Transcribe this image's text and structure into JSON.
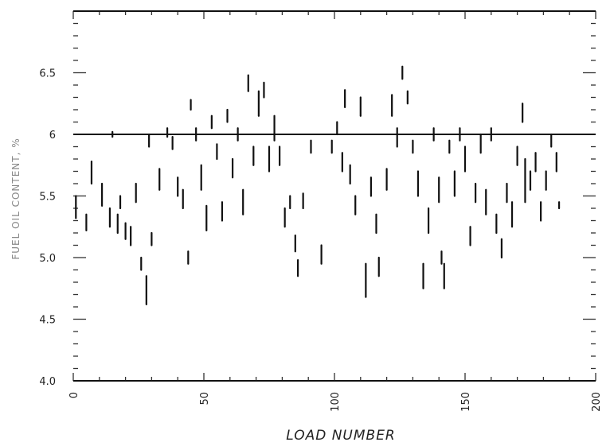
{
  "chart_data": {
    "type": "scatter",
    "title": "",
    "xlabel": "LOAD NUMBER",
    "ylabel": "FUEL OIL CONTENT, %",
    "xlim": [
      0,
      200
    ],
    "ylim": [
      4.0,
      6.0
    ],
    "x_ticks": [
      "0",
      "50",
      "100",
      "150",
      "200"
    ],
    "y_ticks": [
      "4.0",
      "4.5",
      "5.0",
      "5.5",
      "6",
      "6.5"
    ],
    "reference_line": 6.0,
    "grid": false,
    "points": [
      {
        "x": 1,
        "ylo": 5.32,
        "yhi": 5.5
      },
      {
        "x": 5,
        "ylo": 5.22,
        "yhi": 5.35
      },
      {
        "x": 7,
        "ylo": 5.6,
        "yhi": 5.78
      },
      {
        "x": 11,
        "ylo": 5.42,
        "yhi": 5.6
      },
      {
        "x": 14,
        "ylo": 5.25,
        "yhi": 5.4
      },
      {
        "x": 15,
        "ylo": 5.98,
        "yhi": 6.02
      },
      {
        "x": 17,
        "ylo": 5.2,
        "yhi": 5.35
      },
      {
        "x": 18,
        "ylo": 5.4,
        "yhi": 5.5
      },
      {
        "x": 20,
        "ylo": 5.15,
        "yhi": 5.28
      },
      {
        "x": 22,
        "ylo": 5.1,
        "yhi": 5.25
      },
      {
        "x": 24,
        "ylo": 5.45,
        "yhi": 5.6
      },
      {
        "x": 26,
        "ylo": 4.9,
        "yhi": 5.0
      },
      {
        "x": 28,
        "ylo": 4.62,
        "yhi": 4.85
      },
      {
        "x": 29,
        "ylo": 5.9,
        "yhi": 6.0
      },
      {
        "x": 30,
        "ylo": 5.1,
        "yhi": 5.2
      },
      {
        "x": 33,
        "ylo": 5.55,
        "yhi": 5.72
      },
      {
        "x": 36,
        "ylo": 5.98,
        "yhi": 6.05
      },
      {
        "x": 38,
        "ylo": 5.88,
        "yhi": 5.98
      },
      {
        "x": 40,
        "ylo": 5.5,
        "yhi": 5.65
      },
      {
        "x": 42,
        "ylo": 5.4,
        "yhi": 5.55
      },
      {
        "x": 44,
        "ylo": 4.95,
        "yhi": 5.05
      },
      {
        "x": 45,
        "ylo": 6.2,
        "yhi": 6.28
      },
      {
        "x": 47,
        "ylo": 5.95,
        "yhi": 6.05
      },
      {
        "x": 49,
        "ylo": 5.55,
        "yhi": 5.75
      },
      {
        "x": 51,
        "ylo": 5.22,
        "yhi": 5.42
      },
      {
        "x": 53,
        "ylo": 6.05,
        "yhi": 6.15
      },
      {
        "x": 55,
        "ylo": 5.8,
        "yhi": 5.92
      },
      {
        "x": 57,
        "ylo": 5.3,
        "yhi": 5.45
      },
      {
        "x": 59,
        "ylo": 6.1,
        "yhi": 6.2
      },
      {
        "x": 61,
        "ylo": 5.65,
        "yhi": 5.8
      },
      {
        "x": 63,
        "ylo": 5.95,
        "yhi": 6.05
      },
      {
        "x": 65,
        "ylo": 5.35,
        "yhi": 5.55
      },
      {
        "x": 67,
        "ylo": 6.35,
        "yhi": 6.48
      },
      {
        "x": 69,
        "ylo": 5.75,
        "yhi": 5.9
      },
      {
        "x": 71,
        "ylo": 6.15,
        "yhi": 6.35
      },
      {
        "x": 73,
        "ylo": 6.3,
        "yhi": 6.42
      },
      {
        "x": 75,
        "ylo": 5.7,
        "yhi": 5.9
      },
      {
        "x": 77,
        "ylo": 5.95,
        "yhi": 6.15
      },
      {
        "x": 79,
        "ylo": 5.75,
        "yhi": 5.9
      },
      {
        "x": 81,
        "ylo": 5.25,
        "yhi": 5.4
      },
      {
        "x": 83,
        "ylo": 5.4,
        "yhi": 5.5
      },
      {
        "x": 85,
        "ylo": 5.05,
        "yhi": 5.18
      },
      {
        "x": 86,
        "ylo": 4.85,
        "yhi": 4.98
      },
      {
        "x": 88,
        "ylo": 5.4,
        "yhi": 5.52
      },
      {
        "x": 91,
        "ylo": 5.85,
        "yhi": 5.95
      },
      {
        "x": 95,
        "ylo": 4.95,
        "yhi": 5.1
      },
      {
        "x": 99,
        "ylo": 5.85,
        "yhi": 5.95
      },
      {
        "x": 101,
        "ylo": 6.0,
        "yhi": 6.1
      },
      {
        "x": 103,
        "ylo": 5.7,
        "yhi": 5.85
      },
      {
        "x": 104,
        "ylo": 6.22,
        "yhi": 6.36
      },
      {
        "x": 106,
        "ylo": 5.6,
        "yhi": 5.75
      },
      {
        "x": 108,
        "ylo": 5.35,
        "yhi": 5.5
      },
      {
        "x": 110,
        "ylo": 6.15,
        "yhi": 6.3
      },
      {
        "x": 112,
        "ylo": 4.68,
        "yhi": 4.95
      },
      {
        "x": 114,
        "ylo": 5.5,
        "yhi": 5.65
      },
      {
        "x": 116,
        "ylo": 5.2,
        "yhi": 5.35
      },
      {
        "x": 117,
        "ylo": 4.85,
        "yhi": 5.0
      },
      {
        "x": 120,
        "ylo": 5.55,
        "yhi": 5.72
      },
      {
        "x": 122,
        "ylo": 6.15,
        "yhi": 6.32
      },
      {
        "x": 124,
        "ylo": 5.9,
        "yhi": 6.05
      },
      {
        "x": 126,
        "ylo": 6.45,
        "yhi": 6.55
      },
      {
        "x": 128,
        "ylo": 6.25,
        "yhi": 6.35
      },
      {
        "x": 130,
        "ylo": 5.85,
        "yhi": 5.95
      },
      {
        "x": 132,
        "ylo": 5.5,
        "yhi": 5.7
      },
      {
        "x": 134,
        "ylo": 4.75,
        "yhi": 4.95
      },
      {
        "x": 136,
        "ylo": 5.2,
        "yhi": 5.4
      },
      {
        "x": 138,
        "ylo": 5.95,
        "yhi": 6.05
      },
      {
        "x": 140,
        "ylo": 5.45,
        "yhi": 5.65
      },
      {
        "x": 141,
        "ylo": 4.95,
        "yhi": 5.05
      },
      {
        "x": 142,
        "ylo": 4.75,
        "yhi": 4.95
      },
      {
        "x": 144,
        "ylo": 5.85,
        "yhi": 5.95
      },
      {
        "x": 146,
        "ylo": 5.5,
        "yhi": 5.7
      },
      {
        "x": 148,
        "ylo": 5.95,
        "yhi": 6.05
      },
      {
        "x": 150,
        "ylo": 5.7,
        "yhi": 5.9
      },
      {
        "x": 152,
        "ylo": 5.1,
        "yhi": 5.25
      },
      {
        "x": 154,
        "ylo": 5.45,
        "yhi": 5.6
      },
      {
        "x": 156,
        "ylo": 5.85,
        "yhi": 6.0
      },
      {
        "x": 158,
        "ylo": 5.35,
        "yhi": 5.55
      },
      {
        "x": 160,
        "ylo": 5.95,
        "yhi": 6.05
      },
      {
        "x": 162,
        "ylo": 5.2,
        "yhi": 5.35
      },
      {
        "x": 164,
        "ylo": 5.0,
        "yhi": 5.15
      },
      {
        "x": 166,
        "ylo": 5.45,
        "yhi": 5.6
      },
      {
        "x": 168,
        "ylo": 5.25,
        "yhi": 5.45
      },
      {
        "x": 170,
        "ylo": 5.75,
        "yhi": 5.9
      },
      {
        "x": 172,
        "ylo": 6.1,
        "yhi": 6.25
      },
      {
        "x": 173,
        "ylo": 5.45,
        "yhi": 5.8
      },
      {
        "x": 175,
        "ylo": 5.55,
        "yhi": 5.7
      },
      {
        "x": 177,
        "ylo": 5.7,
        "yhi": 5.85
      },
      {
        "x": 179,
        "ylo": 5.3,
        "yhi": 5.45
      },
      {
        "x": 181,
        "ylo": 5.55,
        "yhi": 5.7
      },
      {
        "x": 183,
        "ylo": 5.9,
        "yhi": 6.0
      },
      {
        "x": 185,
        "ylo": 5.7,
        "yhi": 5.85
      },
      {
        "x": 186,
        "ylo": 5.4,
        "yhi": 5.45
      }
    ]
  }
}
